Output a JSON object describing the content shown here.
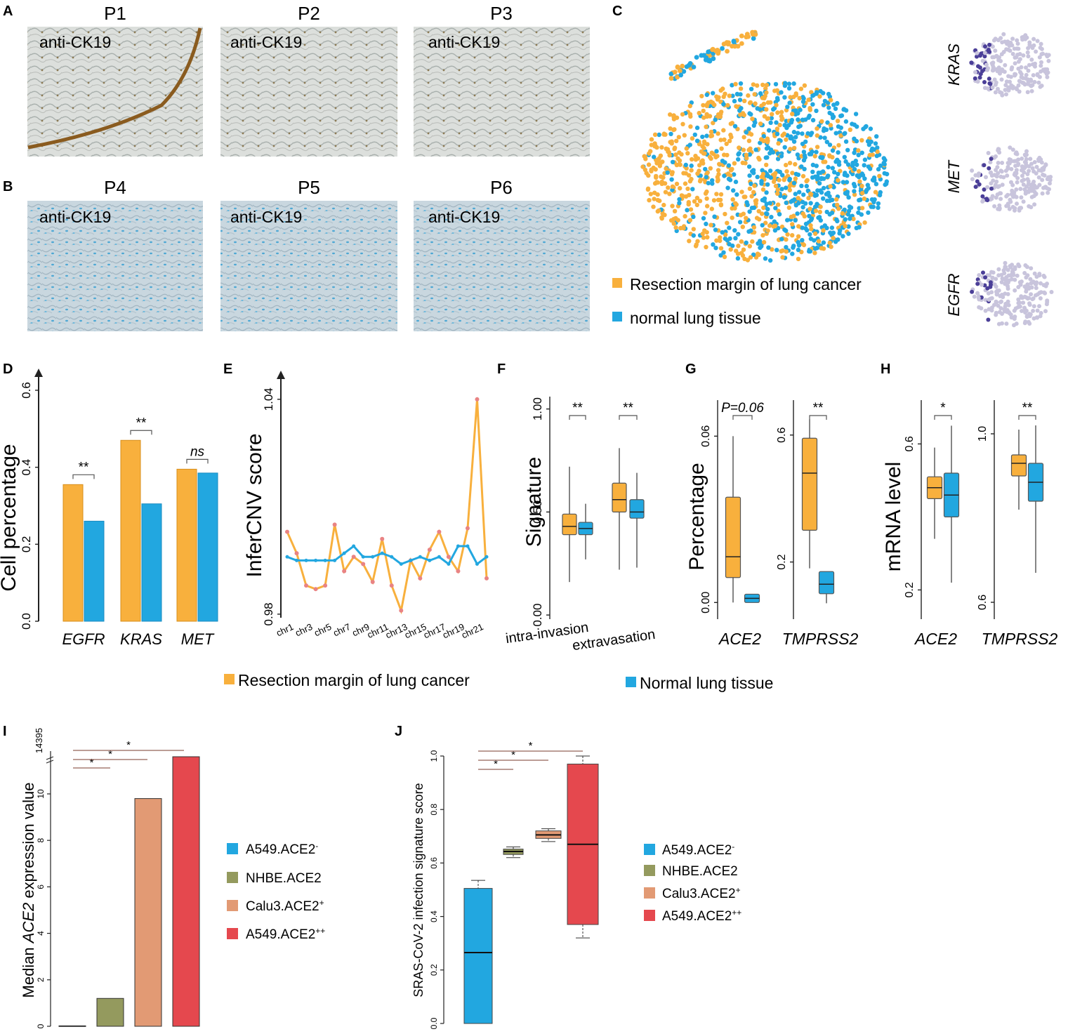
{
  "colors": {
    "orange": "#f8b03d",
    "blue": "#22a7e0",
    "sage": "#949a5e",
    "salmon": "#e29a74",
    "red": "#e5484e",
    "axis": "#222222",
    "bracket": "#7a3b2e",
    "tissue_a": "#d8dbd8",
    "tissue_b": "#c4d4de"
  },
  "panels": {
    "A": {
      "letter": "A",
      "images": [
        {
          "title": "P1",
          "label": "anti-CK19"
        },
        {
          "title": "P2",
          "label": "anti-CK19"
        },
        {
          "title": "P3",
          "label": "anti-CK19"
        }
      ]
    },
    "B": {
      "letter": "B",
      "images": [
        {
          "title": "P4",
          "label": "anti-CK19"
        },
        {
          "title": "P5",
          "label": "anti-CK19"
        },
        {
          "title": "P6",
          "label": "anti-CK19"
        }
      ]
    },
    "C": {
      "letter": "C",
      "legend": [
        "Resection margin of lung cancer",
        "normal lung tissue"
      ],
      "genes": [
        "KRAS",
        "MET",
        "EGFR"
      ]
    },
    "D": {
      "letter": "D"
    },
    "E": {
      "letter": "E"
    },
    "F": {
      "letter": "F"
    },
    "G": {
      "letter": "G"
    },
    "H": {
      "letter": "H"
    },
    "I": {
      "letter": "I"
    },
    "J": {
      "letter": "J"
    }
  },
  "shared_legend": [
    "Resection margin of lung cancer",
    "Normal lung tissue"
  ],
  "chart_data": [
    {
      "panel": "D",
      "type": "bar",
      "ylabel": "Cell percentage",
      "ylim": [
        0,
        0.62
      ],
      "yticks": [
        "0.0",
        "0.2",
        "0.4",
        "0.6"
      ],
      "categories": [
        "EGFR",
        "KRAS",
        "MET"
      ],
      "series": [
        {
          "name": "Resection margin of lung cancer",
          "values": [
            0.355,
            0.47,
            0.395
          ]
        },
        {
          "name": "Normal lung tissue",
          "values": [
            0.26,
            0.305,
            0.385
          ]
        }
      ],
      "annotations": [
        "**",
        "**",
        "ns"
      ]
    },
    {
      "panel": "E",
      "type": "line",
      "ylabel": "InferCNV score",
      "ylim": [
        0.979,
        1.048
      ],
      "yticks": [
        "0.98",
        "1.04"
      ],
      "xticks": [
        "chr1",
        "chr3",
        "chr5",
        "chr7",
        "chr9",
        "chr11",
        "chr13",
        "chr15",
        "chr17",
        "chr19",
        "chr21"
      ],
      "series": [
        {
          "name": "Resection margin of lung cancer",
          "values": [
            1.003,
            0.997,
            0.988,
            0.987,
            0.988,
            1.005,
            0.992,
            0.996,
            0.994,
            0.989,
            1.001,
            0.988,
            0.981,
            0.995,
            0.99,
            0.998,
            1.003,
            0.996,
            0.992,
            1.004,
            1.04,
            0.99
          ]
        },
        {
          "name": "Normal lung tissue",
          "values": [
            0.996,
            0.995,
            0.995,
            0.995,
            0.995,
            0.995,
            0.997,
            0.999,
            0.996,
            0.996,
            0.997,
            0.996,
            0.994,
            0.995,
            0.996,
            0.995,
            0.996,
            0.994,
            0.999,
            0.999,
            0.994,
            0.996
          ]
        }
      ]
    },
    {
      "panel": "F",
      "type": "box",
      "ylabel": "Signature",
      "ylim": [
        -0.02,
        1.06
      ],
      "yticks": [
        "0.00",
        "0.50",
        "1.00"
      ],
      "ytick_values": [
        0,
        0.5,
        1
      ],
      "categories": [
        "intra-invasion",
        "extravasation"
      ],
      "annotations": [
        "**",
        "**"
      ],
      "boxes": [
        {
          "min": 0.16,
          "q1": 0.39,
          "median": 0.43,
          "q3": 0.49,
          "max": 0.72,
          "series": 0
        },
        {
          "min": 0.27,
          "q1": 0.39,
          "median": 0.42,
          "q3": 0.45,
          "max": 0.54,
          "series": 1
        },
        {
          "min": 0.22,
          "q1": 0.5,
          "median": 0.56,
          "q3": 0.64,
          "max": 0.81,
          "series": 0
        },
        {
          "min": 0.23,
          "q1": 0.47,
          "median": 0.5,
          "q3": 0.56,
          "max": 0.69,
          "series": 1
        }
      ]
    },
    {
      "panel": "G1",
      "type": "box",
      "ylabel": "Percentage",
      "ylim": [
        -0.006,
        0.073
      ],
      "yticks": [
        "0.00",
        "0.06"
      ],
      "ytick_values": [
        0,
        0.06
      ],
      "categories": [
        "ACE2"
      ],
      "annotations": [
        "P=0.06"
      ],
      "boxes": [
        {
          "min": 0.0,
          "q1": 0.009,
          "median": 0.0165,
          "q3": 0.038,
          "max": 0.06,
          "series": 0
        },
        {
          "min": 0.0,
          "q1": 0.0,
          "median": 0.0015,
          "q3": 0.003,
          "max": 0.003,
          "series": 1
        }
      ]
    },
    {
      "panel": "G2",
      "type": "box",
      "ylabel": "",
      "ylim": [
        0.02,
        0.71
      ],
      "yticks": [
        "0.2",
        "0.6"
      ],
      "ytick_values": [
        0.2,
        0.6
      ],
      "categories": [
        "TMPRSS2"
      ],
      "annotations": [
        "**"
      ],
      "boxes": [
        {
          "min": 0.18,
          "q1": 0.3,
          "median": 0.48,
          "q3": 0.59,
          "max": 0.65,
          "series": 0
        },
        {
          "min": 0.07,
          "q1": 0.1,
          "median": 0.13,
          "q3": 0.17,
          "max": 0.17,
          "series": 1
        }
      ]
    },
    {
      "panel": "H1",
      "type": "box",
      "ylabel": "mRNA level",
      "ylim": [
        0.12,
        0.72
      ],
      "yticks": [
        "0.2",
        "0.6"
      ],
      "ytick_values": [
        0.2,
        0.6
      ],
      "categories": [
        "ACE2"
      ],
      "annotations": [
        "*"
      ],
      "boxes": [
        {
          "min": 0.34,
          "q1": 0.45,
          "median": 0.48,
          "q3": 0.51,
          "max": 0.59,
          "series": 0
        },
        {
          "min": 0.22,
          "q1": 0.4,
          "median": 0.46,
          "q3": 0.52,
          "max": 0.65,
          "series": 1
        }
      ]
    },
    {
      "panel": "H2",
      "type": "box",
      "ylabel": "",
      "ylim": [
        0.56,
        1.08
      ],
      "yticks": [
        "0.6",
        "1.0"
      ],
      "ytick_values": [
        0.6,
        1.0
      ],
      "categories": [
        "TMPRSS2"
      ],
      "annotations": [
        "**"
      ],
      "boxes": [
        {
          "min": 0.82,
          "q1": 0.9,
          "median": 0.93,
          "q3": 0.95,
          "max": 1.01,
          "series": 0
        },
        {
          "min": 0.67,
          "q1": 0.84,
          "median": 0.885,
          "q3": 0.93,
          "max": 1.02,
          "series": 1
        }
      ]
    },
    {
      "panel": "I",
      "type": "bar",
      "ylabel_prefix": "Median ",
      "ylabel_italic": "ACE2",
      "ylabel_suffix": " expression value",
      "ylim": [
        0,
        11.6
      ],
      "yticks": [
        "0",
        "2",
        "4",
        "6",
        "8",
        "10"
      ],
      "ytick_values": [
        0,
        2,
        4,
        6,
        8,
        10
      ],
      "ybreak_label": "14395",
      "categories": [
        "A549.ACE2-",
        "NHBE.ACE2",
        "Calu3.ACE2+",
        "A549.ACE2++"
      ],
      "values": [
        0.02,
        1.2,
        9.8,
        11.6
      ],
      "annotations": [
        "*",
        "*",
        "*"
      ],
      "legend": [
        {
          "base": "A549.ACE2",
          "sup": "-"
        },
        {
          "base": "NHBE.ACE2",
          "sup": ""
        },
        {
          "base": "Calu3.ACE2",
          "sup": "+"
        },
        {
          "base": "A549.ACE2",
          "sup": "++"
        }
      ]
    },
    {
      "panel": "J",
      "type": "box",
      "ylabel": "SRAS-CoV-2 infection signature score",
      "ylim": [
        0,
        1.0
      ],
      "yticks": [
        "0.0",
        "0.2",
        "0.4",
        "0.6",
        "0.8",
        "1.0"
      ],
      "ytick_values": [
        0,
        0.2,
        0.4,
        0.6,
        0.8,
        1.0
      ],
      "categories": [
        "A549.ACE2-",
        "NHBE.ACE2",
        "Calu3.ACE2+",
        "A549.ACE2++"
      ],
      "annotations": [
        "*",
        "*",
        "*"
      ],
      "boxes": [
        {
          "min": 0.0,
          "q1": 0.0,
          "median": 0.265,
          "q3": 0.505,
          "max": 0.535
        },
        {
          "min": 0.62,
          "q1": 0.632,
          "median": 0.643,
          "q3": 0.652,
          "max": 0.66
        },
        {
          "min": 0.68,
          "q1": 0.692,
          "median": 0.705,
          "q3": 0.72,
          "max": 0.728
        },
        {
          "min": 0.32,
          "q1": 0.37,
          "median": 0.67,
          "q3": 0.97,
          "max": 1.0
        }
      ],
      "legend": [
        {
          "base": "A549.ACE2",
          "sup": "-"
        },
        {
          "base": "NHBE.ACE2",
          "sup": ""
        },
        {
          "base": "Calu3.ACE2",
          "sup": "+"
        },
        {
          "base": "A549.ACE2",
          "sup": "++"
        }
      ]
    }
  ]
}
